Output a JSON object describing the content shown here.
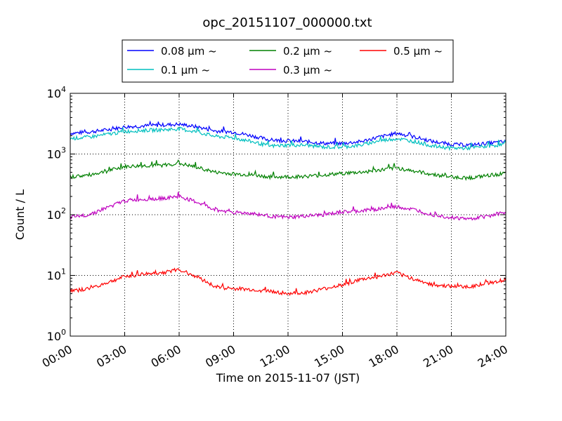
{
  "chart_data": {
    "type": "line",
    "title": "opc_20151107_000000.txt",
    "xlabel": "Time on 2015-11-07 (JST)",
    "ylabel": "Count / L",
    "y_scale": "log",
    "ylim": [
      1,
      10000
    ],
    "xlim": [
      "2015-11-07 00:00",
      "2015-11-08 00:00"
    ],
    "grid": true,
    "legend_position": "top-center",
    "x_tick_labels": [
      "00:00",
      "03:00",
      "06:00",
      "09:00",
      "12:00",
      "15:00",
      "18:00",
      "21:00",
      "24:00"
    ],
    "y_tick_labels": [
      {
        "base": "10",
        "exp": "0"
      },
      {
        "base": "10",
        "exp": "1"
      },
      {
        "base": "10",
        "exp": "2"
      },
      {
        "base": "10",
        "exp": "3"
      },
      {
        "base": "10",
        "exp": "4"
      }
    ],
    "x_hours": [
      0,
      1,
      2,
      3,
      4,
      5,
      6,
      7,
      8,
      9,
      10,
      11,
      12,
      13,
      14,
      15,
      16,
      17,
      18,
      19,
      20,
      21,
      22,
      23,
      24
    ],
    "series": [
      {
        "name": "0.08 μm ~",
        "color": "#0000ff",
        "values": [
          2200,
          2300,
          2500,
          2800,
          2900,
          3000,
          3100,
          2800,
          2400,
          2300,
          2000,
          1700,
          1650,
          1600,
          1500,
          1500,
          1600,
          1900,
          2200,
          1900,
          1600,
          1450,
          1400,
          1500,
          1600
        ]
      },
      {
        "name": "0.1 μm ~",
        "color": "#00bfbf",
        "values": [
          1800,
          1900,
          2100,
          2350,
          2450,
          2500,
          2600,
          2300,
          1950,
          1850,
          1600,
          1350,
          1400,
          1400,
          1300,
          1300,
          1400,
          1650,
          1800,
          1600,
          1350,
          1250,
          1250,
          1350,
          1450
        ]
      },
      {
        "name": "0.2 μm ~",
        "color": "#008000",
        "values": [
          420,
          450,
          520,
          620,
          640,
          650,
          700,
          600,
          500,
          470,
          450,
          420,
          420,
          430,
          450,
          480,
          500,
          540,
          590,
          520,
          460,
          420,
          400,
          440,
          480
        ]
      },
      {
        "name": "0.3 μm ~",
        "color": "#bf00bf",
        "values": [
          90,
          100,
          130,
          170,
          180,
          185,
          200,
          160,
          120,
          110,
          105,
          95,
          90,
          95,
          100,
          110,
          115,
          125,
          135,
          120,
          100,
          90,
          85,
          95,
          110
        ]
      },
      {
        "name": "0.5 μm ~",
        "color": "#ff0000",
        "values": [
          5.5,
          6.0,
          7.5,
          9.5,
          10.5,
          11.0,
          12.5,
          9.5,
          6.5,
          6.0,
          5.8,
          5.5,
          5.0,
          5.2,
          6.0,
          7.0,
          8.5,
          9.5,
          11.0,
          8.5,
          7.0,
          6.5,
          6.5,
          7.5,
          8.5
        ]
      }
    ]
  }
}
